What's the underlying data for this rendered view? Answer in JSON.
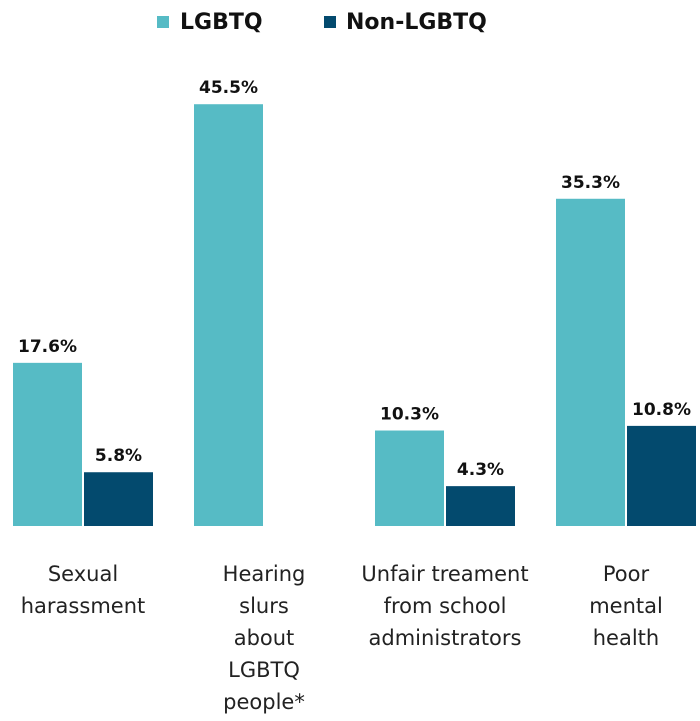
{
  "chart_data": {
    "type": "bar",
    "categories": [
      "Sexual harassment",
      "Hearing slurs about LGBTQ people*",
      "Unfair treament from school administrators",
      "Poor mental health"
    ],
    "series": [
      {
        "name": "LGBTQ",
        "color": "#56bbc5",
        "values": [
          17.6,
          45.5,
          10.3,
          35.3
        ],
        "value_labels": [
          "17.6%",
          "45.5%",
          "10.3%",
          "35.3%"
        ]
      },
      {
        "name": "Non-LGBTQ",
        "color": "#034a6e",
        "values": [
          5.8,
          null,
          4.3,
          10.8
        ],
        "value_labels": [
          "5.8%",
          null,
          "4.3%",
          "10.8%"
        ]
      }
    ],
    "legend": "top"
  }
}
